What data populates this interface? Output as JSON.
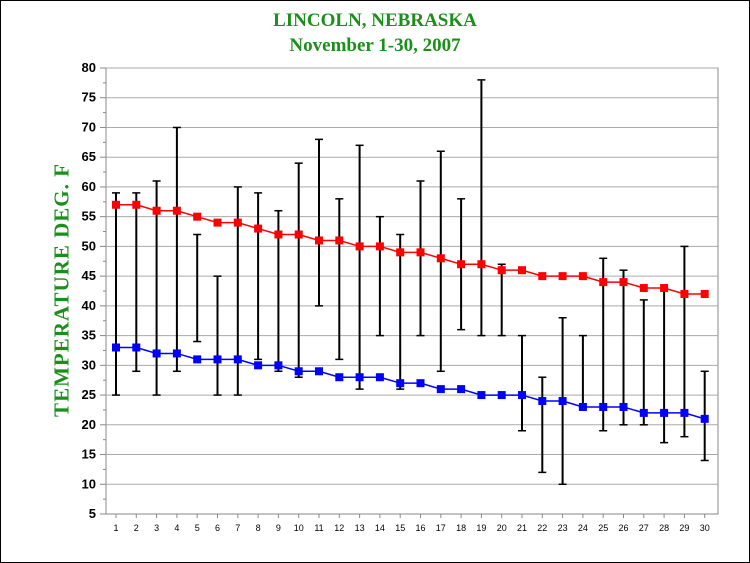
{
  "chart_data": {
    "type": "line",
    "title": "LINCOLN, NEBRASKA",
    "subtitle": "November 1-30,  2007",
    "ylabel": "TEMPERATURE DEG. F",
    "xlabel": "",
    "ylim": [
      5,
      80
    ],
    "yticks": [
      5,
      10,
      15,
      20,
      25,
      30,
      35,
      40,
      45,
      50,
      55,
      60,
      65,
      70,
      75,
      80
    ],
    "x": [
      1,
      2,
      3,
      4,
      5,
      6,
      7,
      8,
      9,
      10,
      11,
      12,
      13,
      14,
      15,
      16,
      17,
      18,
      19,
      20,
      21,
      22,
      23,
      24,
      25,
      26,
      27,
      28,
      29,
      30
    ],
    "grid": "horizontal",
    "series": [
      {
        "color": "#ff0000",
        "values": [
          57,
          57,
          56,
          56,
          55,
          54,
          54,
          53,
          52,
          52,
          51,
          51,
          50,
          50,
          49,
          49,
          48,
          47,
          47,
          46,
          46,
          45,
          45,
          45,
          44,
          44,
          43,
          43,
          42,
          42
        ]
      },
      {
        "color": "#0000ff",
        "values": [
          33,
          33,
          32,
          32,
          31,
          31,
          31,
          30,
          30,
          29,
          29,
          28,
          28,
          28,
          27,
          27,
          26,
          26,
          25,
          25,
          25,
          24,
          24,
          23,
          23,
          23,
          22,
          22,
          22,
          21
        ]
      }
    ],
    "observed_range": {
      "color": "#000000",
      "high": [
        59,
        59,
        61,
        70,
        52,
        45,
        60,
        59,
        56,
        64,
        68,
        58,
        67,
        55,
        52,
        61,
        66,
        58,
        78,
        47,
        35,
        28,
        38,
        35,
        48,
        46,
        41,
        43,
        50,
        29
      ],
      "low": [
        25,
        29,
        25,
        29,
        34,
        25,
        25,
        31,
        29,
        28,
        40,
        31,
        26,
        35,
        26,
        35,
        29,
        36,
        35,
        35,
        19,
        12,
        10,
        23,
        19,
        20,
        20,
        17,
        18,
        14
      ]
    }
  }
}
